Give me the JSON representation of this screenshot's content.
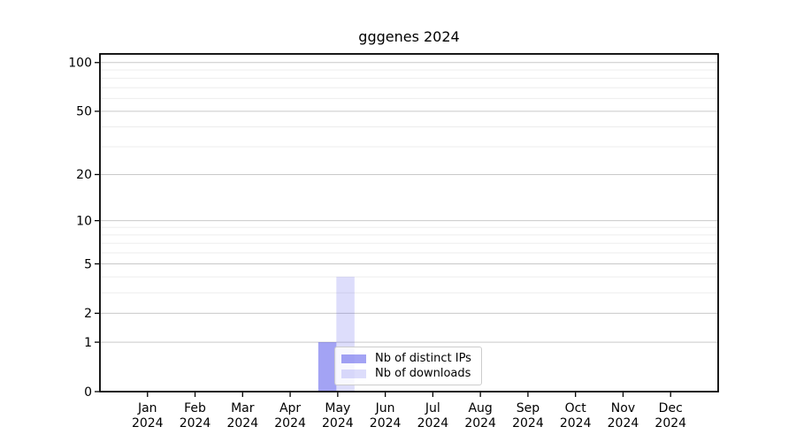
{
  "chart_data": {
    "type": "bar",
    "title": "gggenes 2024",
    "categories": [
      "Jan",
      "Feb",
      "Mar",
      "Apr",
      "May",
      "Jun",
      "Jul",
      "Aug",
      "Sep",
      "Oct",
      "Nov",
      "Dec"
    ],
    "year_label": "2024",
    "series": [
      {
        "name": "Nb of distinct IPs",
        "color": "rgba(51,51,230,0.45)",
        "values": [
          0,
          0,
          0,
          0,
          1,
          0,
          0,
          0,
          0,
          0,
          0,
          0
        ]
      },
      {
        "name": "Nb of downloads",
        "color": "rgba(51,51,230,0.17)",
        "values": [
          0,
          0,
          0,
          0,
          4,
          0,
          0,
          0,
          0,
          0,
          0,
          0
        ]
      }
    ],
    "xlabel": "",
    "ylabel": "",
    "yscale": "log1p",
    "ylim": [
      0,
      113
    ],
    "y_major_ticks": [
      0,
      1,
      2,
      5,
      10,
      20,
      50,
      100
    ],
    "y_minor_gridlines": [
      3,
      4,
      6,
      7,
      8,
      9,
      30,
      40,
      60,
      70,
      80,
      90
    ],
    "grid": true,
    "legend_position": "inside-bottom-center",
    "colors": {
      "major_grid": "#c9c9c9",
      "minor_grid": "#ededed",
      "axis": "#000000",
      "background": "#ffffff"
    }
  }
}
